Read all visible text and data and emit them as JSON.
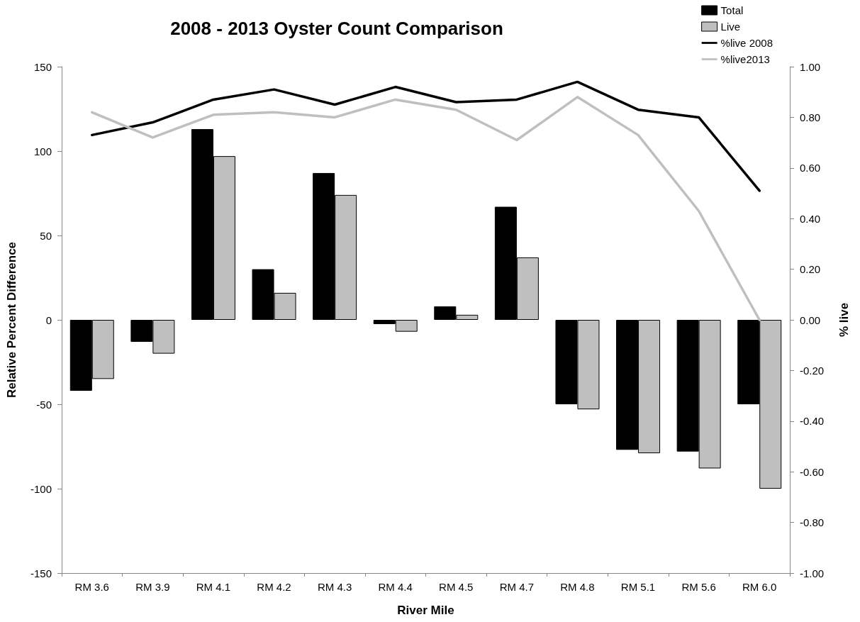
{
  "chart_data": {
    "type": "bar",
    "title": "2008 - 2013 Oyster Count Comparison",
    "xlabel": "River Mile",
    "ylabel": "Relative Percent Difference",
    "y2label": "% live",
    "categories": [
      "RM 3.6",
      "RM 3.9",
      "RM 4.1",
      "RM 4.2",
      "RM 4.3",
      "RM 4.4",
      "RM 4.5",
      "RM 4.7",
      "RM 4.8",
      "RM 5.1",
      "RM 5.6",
      "RM 6.0"
    ],
    "series": [
      {
        "name": "Total",
        "color": "#000000",
        "values": [
          -42,
          -13,
          113,
          30,
          87,
          -2.5,
          8,
          67,
          -50,
          -77,
          -78,
          -50
        ]
      },
      {
        "name": "Live",
        "color": "#bfbfbf",
        "values": [
          -35,
          -20,
          97,
          16,
          74,
          -7,
          3,
          37,
          -53,
          -79,
          -88,
          -100
        ]
      },
      {
        "name": "%live 2008",
        "type": "line",
        "axis": "y2",
        "color": "#000000",
        "values": [
          0.73,
          0.78,
          0.87,
          0.91,
          0.85,
          0.92,
          0.86,
          0.87,
          0.94,
          0.83,
          0.8,
          0.51
        ]
      },
      {
        "name": "%live2013",
        "type": "line",
        "axis": "y2",
        "color": "#bfbfbf",
        "values": [
          0.82,
          0.72,
          0.81,
          0.82,
          0.8,
          0.87,
          0.83,
          0.71,
          0.88,
          0.73,
          0.43,
          0.0
        ]
      }
    ],
    "ylim": [
      -150,
      150
    ],
    "yticks": [
      -150,
      -100,
      -50,
      0,
      50,
      100,
      150
    ],
    "y2lim": [
      -1,
      1
    ],
    "y2ticks": [
      {
        "value": -1,
        "label": "-1.00"
      },
      {
        "value": -0.8,
        "label": "-0.80"
      },
      {
        "value": -0.6,
        "label": "-0.60"
      },
      {
        "value": -0.4,
        "label": "-0.40"
      },
      {
        "value": -0.2,
        "label": "-0.20"
      },
      {
        "value": 0,
        "label": "0.00"
      },
      {
        "value": 0.2,
        "label": "0.20"
      },
      {
        "value": 0.4,
        "label": "0.40"
      },
      {
        "value": 0.6,
        "label": "0.60"
      },
      {
        "value": 0.8,
        "label": "0.80"
      },
      {
        "value": 1,
        "label": "1.00"
      }
    ],
    "grid": false,
    "legend": "top right",
    "marker": "none",
    "line_style": "solid"
  }
}
